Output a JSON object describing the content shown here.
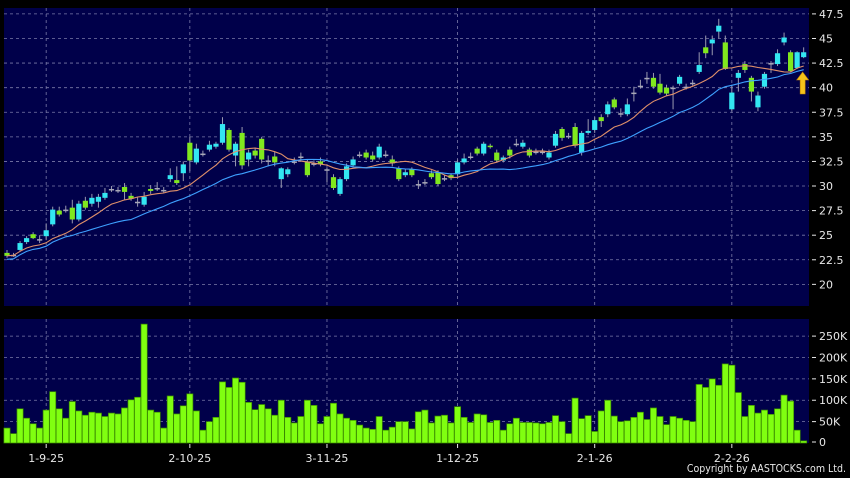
{
  "copyright": "Copyright by AASTOCKS.com Ltd.",
  "chart_data": [
    {
      "type": "candlestick",
      "title": "",
      "colors": {
        "background": "#00004a",
        "up": "#33e6f2",
        "down": "#80e81e",
        "unchanged": "#a8a8b8",
        "grid": "#7a7aa8",
        "ma_short": "#e0906a",
        "ma_long": "#3ea0ff",
        "marker": "#f5c21b"
      },
      "ylim": [
        17.8,
        48.1
      ],
      "y_ticks": [
        "47.5",
        "45",
        "42.5",
        "40",
        "37.5",
        "35",
        "32.5",
        "30",
        "27.5",
        "25",
        "22.5",
        "20"
      ],
      "grid": true,
      "ma_periods": [
        10,
        20
      ],
      "marker": "up-arrow-icon",
      "marker_index": 122,
      "ohlc": [
        [
          23.2,
          23.5,
          22.7,
          22.9
        ],
        [
          23.0,
          23.2,
          22.8,
          23.0
        ],
        [
          23.5,
          24.4,
          23.3,
          24.2
        ],
        [
          24.3,
          24.9,
          24.1,
          24.7
        ],
        [
          25.1,
          25.3,
          24.6,
          24.7
        ],
        [
          24.6,
          25.0,
          24.2,
          24.6
        ],
        [
          24.9,
          26.2,
          24.5,
          25.5
        ],
        [
          26.1,
          27.9,
          25.9,
          27.6
        ],
        [
          27.5,
          27.9,
          26.9,
          27.1
        ],
        [
          27.6,
          28.0,
          27.3,
          27.6
        ],
        [
          27.8,
          28.6,
          26.2,
          26.6
        ],
        [
          26.6,
          28.5,
          26.4,
          28.2
        ],
        [
          28.5,
          28.9,
          27.6,
          27.8
        ],
        [
          28.2,
          29.2,
          27.9,
          28.8
        ],
        [
          28.4,
          29.2,
          27.8,
          28.9
        ],
        [
          28.8,
          29.8,
          28.6,
          29.3
        ],
        [
          29.7,
          30.0,
          29.4,
          29.7
        ],
        [
          29.6,
          29.9,
          29.3,
          29.6
        ],
        [
          29.9,
          30.3,
          28.6,
          29.4
        ],
        [
          29.0,
          29.3,
          28.5,
          28.7
        ],
        [
          28.4,
          28.9,
          27.9,
          28.4
        ],
        [
          28.1,
          29.4,
          27.9,
          28.9
        ],
        [
          29.7,
          30.1,
          29.2,
          29.5
        ],
        [
          29.8,
          30.4,
          29.5,
          29.8
        ],
        [
          29.6,
          29.9,
          29.3,
          29.6
        ],
        [
          30.7,
          31.8,
          30.4,
          31.1
        ],
        [
          30.6,
          32.0,
          30.1,
          30.3
        ],
        [
          31.3,
          32.5,
          30.5,
          32.2
        ],
        [
          34.4,
          35.0,
          31.5,
          32.6
        ],
        [
          32.4,
          34.3,
          32.2,
          33.8
        ],
        [
          33.3,
          33.6,
          33.0,
          33.3
        ],
        [
          33.7,
          34.6,
          33.5,
          34.2
        ],
        [
          34.0,
          34.5,
          33.8,
          34.3
        ],
        [
          34.4,
          37.0,
          34.2,
          36.3
        ],
        [
          35.7,
          35.9,
          33.5,
          33.7
        ],
        [
          33.1,
          34.5,
          32.0,
          34.3
        ],
        [
          35.4,
          36.0,
          31.7,
          32.1
        ],
        [
          32.7,
          33.7,
          32.0,
          33.4
        ],
        [
          33.6,
          33.9,
          32.8,
          33.1
        ],
        [
          34.8,
          35.0,
          32.3,
          32.7
        ],
        [
          32.6,
          33.1,
          32.0,
          32.6
        ],
        [
          33.0,
          33.5,
          32.0,
          32.4
        ],
        [
          30.7,
          31.9,
          29.8,
          31.8
        ],
        [
          31.2,
          31.9,
          30.9,
          31.7
        ],
        [
          32.5,
          32.9,
          32.2,
          32.5
        ],
        [
          33.0,
          33.4,
          32.7,
          33.0
        ],
        [
          32.5,
          32.7,
          30.9,
          31.1
        ],
        [
          32.3,
          32.6,
          32.0,
          32.3
        ],
        [
          32.5,
          32.9,
          32.0,
          32.2
        ],
        [
          31.7,
          31.9,
          30.4,
          31.7
        ],
        [
          30.9,
          31.2,
          29.6,
          29.8
        ],
        [
          29.2,
          30.9,
          29.0,
          30.7
        ],
        [
          30.7,
          32.3,
          30.5,
          32.0
        ],
        [
          32.1,
          33.0,
          31.9,
          32.7
        ],
        [
          33.2,
          33.5,
          32.9,
          33.2
        ],
        [
          33.4,
          33.7,
          32.7,
          32.9
        ],
        [
          33.1,
          33.5,
          32.5,
          32.7
        ],
        [
          32.9,
          34.3,
          32.7,
          34.0
        ],
        [
          33.2,
          33.6,
          32.9,
          33.2
        ],
        [
          32.7,
          33.1,
          32.0,
          32.3
        ],
        [
          31.8,
          32.0,
          30.5,
          30.7
        ],
        [
          31.1,
          31.7,
          30.9,
          31.4
        ],
        [
          31.7,
          31.9,
          30.9,
          31.1
        ],
        [
          30.2,
          30.6,
          29.7,
          30.2
        ],
        [
          30.4,
          30.7,
          30.1,
          30.4
        ],
        [
          31.3,
          31.6,
          30.7,
          30.9
        ],
        [
          31.4,
          31.6,
          30.0,
          30.2
        ],
        [
          30.8,
          31.1,
          30.5,
          30.8
        ],
        [
          31.1,
          31.3,
          30.6,
          30.8
        ],
        [
          31.2,
          32.7,
          31.0,
          32.4
        ],
        [
          32.4,
          33.3,
          32.2,
          32.8
        ],
        [
          33.0,
          33.4,
          32.7,
          33.0
        ],
        [
          33.8,
          34.0,
          33.1,
          33.3
        ],
        [
          33.3,
          34.5,
          33.1,
          34.3
        ],
        [
          34.1,
          34.3,
          33.8,
          34.0
        ],
        [
          33.4,
          33.7,
          32.4,
          32.6
        ],
        [
          32.6,
          33.1,
          32.4,
          32.9
        ],
        [
          33.7,
          34.0,
          32.8,
          33.1
        ],
        [
          34.3,
          34.8,
          34.0,
          34.3
        ],
        [
          34.0,
          34.7,
          33.8,
          34.4
        ],
        [
          33.7,
          33.9,
          32.9,
          33.1
        ],
        [
          33.5,
          33.8,
          33.2,
          33.5
        ],
        [
          33.5,
          33.8,
          33.2,
          33.5
        ],
        [
          32.9,
          33.7,
          32.7,
          33.4
        ],
        [
          34.1,
          35.6,
          33.9,
          35.3
        ],
        [
          35.8,
          36.0,
          34.6,
          34.9
        ],
        [
          35.1,
          35.4,
          34.8,
          35.1
        ],
        [
          36.0,
          36.4,
          33.9,
          34.1
        ],
        [
          33.4,
          35.6,
          33.1,
          35.4
        ],
        [
          35.4,
          36.8,
          35.2,
          35.6
        ],
        [
          35.7,
          37.0,
          35.4,
          36.7
        ],
        [
          37.0,
          37.3,
          36.0,
          36.6
        ],
        [
          37.3,
          38.6,
          37.0,
          38.3
        ],
        [
          38.8,
          39.0,
          37.8,
          38.0
        ],
        [
          37.4,
          37.9,
          37.0,
          37.4
        ],
        [
          37.3,
          38.9,
          37.1,
          38.3
        ],
        [
          39.5,
          40.1,
          38.6,
          39.5
        ],
        [
          40.2,
          40.8,
          39.9,
          40.2
        ],
        [
          41.0,
          41.6,
          40.4,
          41.0
        ],
        [
          41.0,
          41.5,
          39.9,
          40.1
        ],
        [
          40.4,
          41.4,
          39.3,
          39.5
        ],
        [
          40.0,
          40.3,
          39.2,
          39.4
        ],
        [
          40.0,
          40.2,
          37.8,
          40.0
        ],
        [
          40.4,
          41.3,
          40.2,
          41.1
        ],
        [
          40.1,
          40.4,
          39.8,
          40.1
        ],
        [
          40.5,
          40.8,
          40.2,
          40.5
        ],
        [
          41.6,
          43.6,
          41.4,
          42.3
        ],
        [
          44.1,
          45.3,
          43.0,
          43.5
        ],
        [
          44.5,
          45.3,
          43.3,
          44.9
        ],
        [
          45.7,
          47.0,
          45.0,
          46.3
        ],
        [
          44.6,
          45.3,
          41.8,
          41.9
        ],
        [
          37.8,
          40.3,
          37.6,
          39.5
        ],
        [
          41.0,
          41.8,
          39.6,
          41.5
        ],
        [
          42.4,
          42.7,
          41.5,
          41.8
        ],
        [
          41.0,
          41.2,
          38.6,
          39.6
        ],
        [
          38.0,
          39.6,
          37.6,
          39.2
        ],
        [
          40.1,
          41.6,
          39.9,
          41.4
        ],
        [
          42.5,
          42.7,
          41.5,
          42.5
        ],
        [
          42.4,
          43.9,
          42.2,
          43.5
        ],
        [
          44.6,
          45.6,
          44.3,
          45.1
        ],
        [
          43.6,
          43.8,
          41.6,
          41.7
        ],
        [
          42.0,
          43.7,
          41.9,
          43.6
        ],
        [
          43.1,
          44.1,
          43.0,
          43.6
        ]
      ]
    },
    {
      "type": "bar",
      "title": "",
      "colors": {
        "bar": "#80ff10",
        "bar_edge": "#3a8a00"
      },
      "ylim": [
        0,
        290000
      ],
      "y_ticks": [
        {
          "label": "250K",
          "value": 250000
        },
        {
          "label": "200K",
          "value": 200000
        },
        {
          "label": "150K",
          "value": 150000
        },
        {
          "label": "100K",
          "value": 100000
        },
        {
          "label": "50K",
          "value": 50000
        },
        {
          "label": "0",
          "value": 0
        }
      ],
      "grid": true,
      "values": [
        35000,
        22000,
        80000,
        58000,
        45000,
        35000,
        77000,
        120000,
        80000,
        58000,
        97000,
        75000,
        65000,
        72000,
        70000,
        62000,
        70000,
        68000,
        82000,
        101000,
        107000,
        278000,
        77000,
        72000,
        35000,
        110000,
        68000,
        87000,
        115000,
        75000,
        30000,
        50000,
        60000,
        143000,
        130000,
        152000,
        142000,
        95000,
        78000,
        90000,
        80000,
        65000,
        100000,
        60000,
        47000,
        62000,
        100000,
        88000,
        45000,
        62000,
        93000,
        68000,
        58000,
        53000,
        42000,
        35000,
        32000,
        62000,
        30000,
        37000,
        50000,
        50000,
        33000,
        73000,
        77000,
        47000,
        63000,
        65000,
        47000,
        85000,
        60000,
        48000,
        68000,
        66000,
        48000,
        53000,
        30000,
        45000,
        58000,
        48000,
        48000,
        47000,
        45000,
        48000,
        64000,
        50000,
        22000,
        105000,
        57000,
        64000,
        27000,
        75000,
        100000,
        63000,
        50000,
        52000,
        60000,
        72000,
        55000,
        82000,
        62000,
        43000,
        62000,
        58000,
        53000,
        50000,
        137000,
        130000,
        150000,
        135000,
        185000,
        182000,
        118000,
        62000,
        88000,
        70000,
        77000,
        67000,
        80000,
        112000,
        98000,
        30000,
        5000
      ]
    }
  ],
  "x_axis": {
    "labels": [
      {
        "label": "1-9-25",
        "index": 6
      },
      {
        "label": "2-10-25",
        "index": 28
      },
      {
        "label": "3-11-25",
        "index": 49
      },
      {
        "label": "1-12-25",
        "index": 69
      },
      {
        "label": "2-1-26",
        "index": 90
      },
      {
        "label": "2-2-26",
        "index": 111
      }
    ]
  }
}
